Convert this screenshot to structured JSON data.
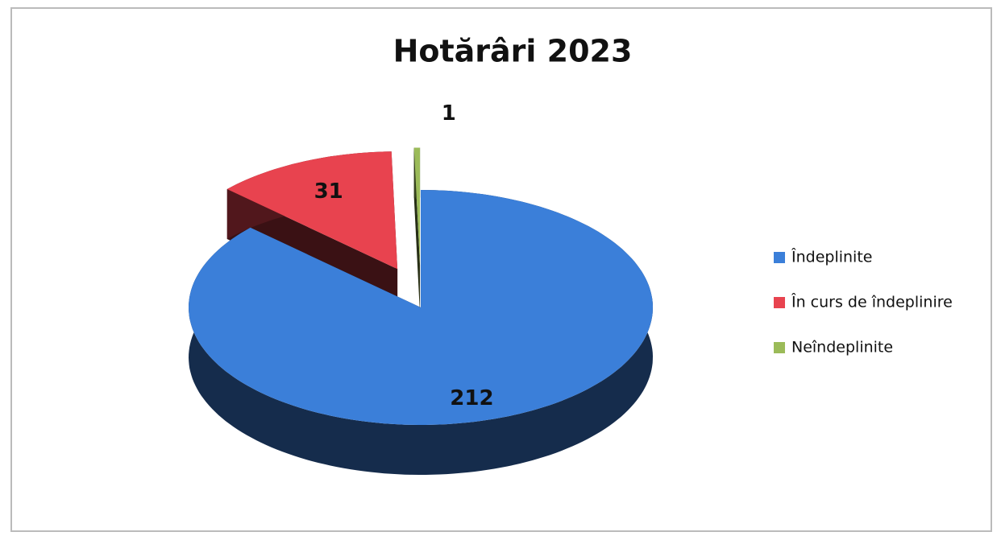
{
  "chart_data": {
    "type": "pie",
    "title": "Hotărâri 2023",
    "categories": [
      "Îndeplinite",
      "În curs de îndeplinire",
      "Neîndeplinite"
    ],
    "values": [
      212,
      31,
      1
    ],
    "colors": [
      "#3b7fd9",
      "#e8434f",
      "#9bbb59"
    ],
    "legend": "right"
  }
}
